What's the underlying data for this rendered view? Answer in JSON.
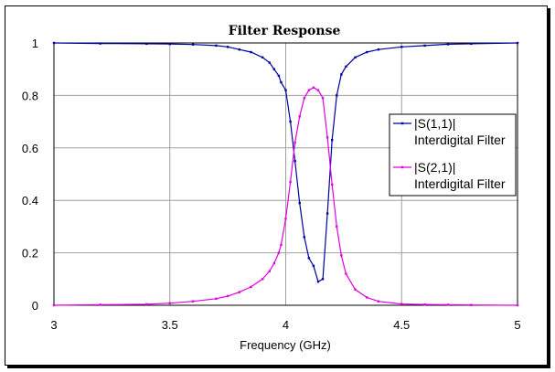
{
  "chart_data": {
    "type": "line",
    "title": "Filter Response",
    "xlabel": "Frequency (GHz)",
    "ylabel": "",
    "xlim": [
      3,
      5
    ],
    "ylim": [
      0,
      1
    ],
    "xticks": [
      3,
      3.5,
      4,
      4.5,
      5
    ],
    "xtick_labels": [
      "3",
      "3.5",
      "4",
      "4.5",
      "5"
    ],
    "yticks": [
      0,
      0.2,
      0.4,
      0.6,
      0.8,
      1
    ],
    "ytick_labels": [
      "0",
      "0.2",
      "0.4",
      "0.6",
      "0.8",
      "1"
    ],
    "grid": true,
    "legend_position": "right",
    "series": [
      {
        "name_lines": [
          "|S(1,1)|",
          "Interdigital Filter"
        ],
        "color": "#0000a0",
        "x": [
          3.0,
          3.2,
          3.4,
          3.5,
          3.6,
          3.7,
          3.75,
          3.8,
          3.85,
          3.9,
          3.93,
          3.95,
          3.97,
          3.98,
          4.0,
          4.02,
          4.04,
          4.06,
          4.08,
          4.1,
          4.12,
          4.14,
          4.16,
          4.18,
          4.2,
          4.22,
          4.24,
          4.26,
          4.3,
          4.35,
          4.4,
          4.5,
          4.6,
          4.7,
          4.8,
          5.0
        ],
        "y": [
          1.0,
          0.998,
          0.997,
          0.996,
          0.994,
          0.99,
          0.985,
          0.975,
          0.965,
          0.945,
          0.925,
          0.9,
          0.875,
          0.85,
          0.82,
          0.7,
          0.55,
          0.39,
          0.26,
          0.18,
          0.15,
          0.09,
          0.1,
          0.35,
          0.63,
          0.8,
          0.88,
          0.91,
          0.945,
          0.965,
          0.975,
          0.985,
          0.99,
          0.995,
          0.997,
          1.0
        ]
      },
      {
        "name_lines": [
          "|S(2,1)|",
          "Interdigital Filter"
        ],
        "color": "#e000e0",
        "x": [
          3.0,
          3.2,
          3.4,
          3.5,
          3.6,
          3.7,
          3.75,
          3.8,
          3.85,
          3.9,
          3.93,
          3.95,
          3.97,
          3.98,
          4.0,
          4.02,
          4.04,
          4.06,
          4.08,
          4.1,
          4.12,
          4.14,
          4.16,
          4.18,
          4.2,
          4.22,
          4.24,
          4.26,
          4.3,
          4.35,
          4.4,
          4.5,
          4.6,
          4.7,
          4.8,
          5.0
        ],
        "y": [
          0.0,
          0.002,
          0.004,
          0.008,
          0.015,
          0.025,
          0.035,
          0.05,
          0.07,
          0.1,
          0.13,
          0.16,
          0.2,
          0.23,
          0.33,
          0.47,
          0.62,
          0.72,
          0.79,
          0.82,
          0.83,
          0.82,
          0.79,
          0.64,
          0.46,
          0.3,
          0.19,
          0.12,
          0.06,
          0.03,
          0.015,
          0.005,
          0.003,
          0.002,
          0.001,
          0.0
        ]
      }
    ]
  }
}
